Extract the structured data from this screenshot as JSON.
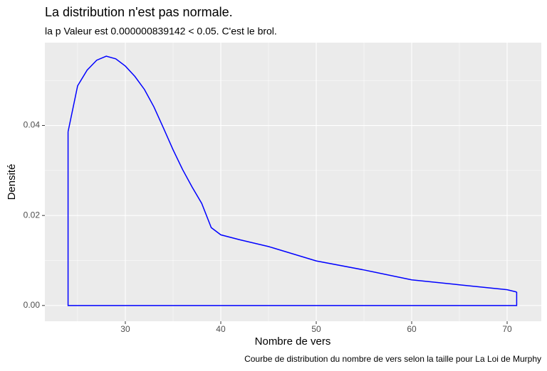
{
  "chart_data": {
    "type": "density",
    "title": "La distribution n'est pas normale.",
    "subtitle": "la p Valeur est  0.000000839142  < 0.05. C'est le brol.",
    "x_label": "Nombre de vers",
    "y_label": "Densité",
    "caption": "Courbe de distribution du nombre de vers selon la taille pour  La Loi de Murphy",
    "series": [
      {
        "color": "#0000ff",
        "x": [
          24,
          25,
          26,
          27,
          28,
          29,
          30,
          31,
          32,
          33,
          34,
          35,
          36,
          37,
          38,
          39,
          40,
          42,
          45,
          50,
          55,
          60,
          65,
          70,
          71
        ],
        "values": [
          0.0386,
          0.0488,
          0.0523,
          0.0545,
          0.0554,
          0.0548,
          0.0532,
          0.0509,
          0.048,
          0.0441,
          0.0394,
          0.0346,
          0.0302,
          0.0263,
          0.0227,
          0.0173,
          0.0157,
          0.0146,
          0.0131,
          0.0099,
          0.0079,
          0.0057,
          0.0046,
          0.0035,
          0.003
        ]
      }
    ],
    "xlim": [
      21.57,
      73.58
    ],
    "ylim": [
      -0.0035,
      0.0584
    ],
    "xticks": [
      30,
      40,
      50,
      60,
      70
    ],
    "yticks": [
      {
        "value": 0,
        "label": "0.00"
      },
      {
        "value": 0.02,
        "label": "0.02"
      },
      {
        "value": 0.04,
        "label": "0.04"
      }
    ],
    "grid": true,
    "panel_color": "#ebebeb"
  }
}
